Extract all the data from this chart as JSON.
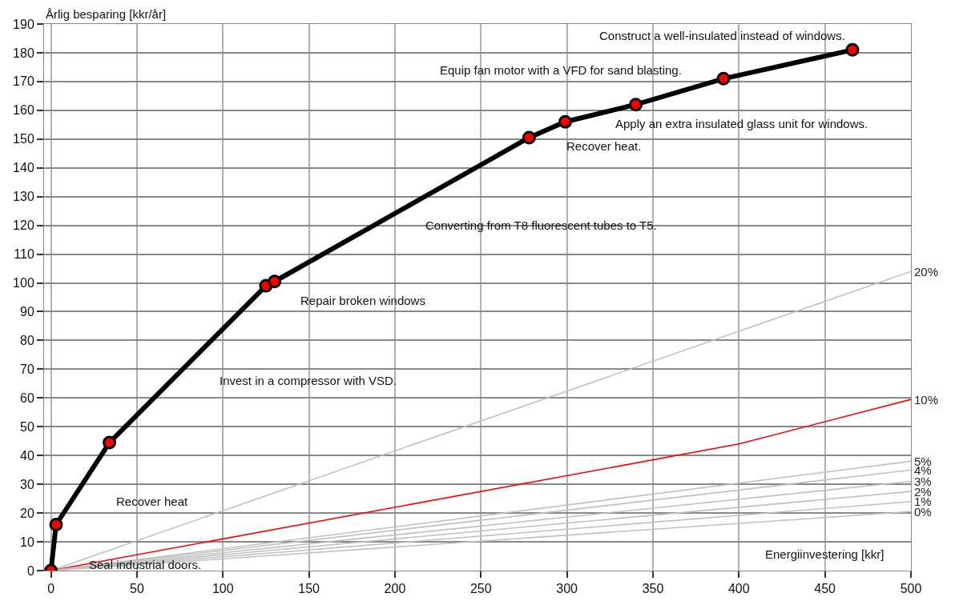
{
  "chart_data": {
    "type": "line",
    "ylabel": "Årlig besparing [kkr/år]",
    "xlabel": "Energiinvestering [kkr]",
    "xlim": [
      -4,
      500
    ],
    "ylim": [
      0,
      190
    ],
    "xticks": [
      0,
      50,
      100,
      150,
      200,
      250,
      300,
      350,
      400,
      450,
      500
    ],
    "yticks": [
      0,
      10,
      20,
      30,
      40,
      50,
      60,
      70,
      80,
      90,
      100,
      110,
      120,
      130,
      140,
      150,
      160,
      170,
      180,
      190
    ],
    "grid": true,
    "legend": false,
    "series": [
      {
        "name": "20%",
        "color": "#c0c0c0",
        "x": [
          0,
          500
        ],
        "values": [
          0,
          104
        ],
        "marker": "none"
      },
      {
        "name": "10%",
        "color": "#ff0000",
        "x": [
          0,
          400,
          500
        ],
        "values": [
          0,
          44,
          59.5
        ],
        "marker": "none"
      },
      {
        "name": "5%",
        "color": "#c0c0c0",
        "x": [
          0,
          500
        ],
        "values": [
          0,
          38
        ],
        "marker": "none"
      },
      {
        "name": "4%",
        "color": "#c0c0c0",
        "x": [
          0,
          500
        ],
        "values": [
          0,
          35
        ],
        "marker": "none"
      },
      {
        "name": "3%",
        "color": "#c0c0c0",
        "x": [
          0,
          500
        ],
        "values": [
          0,
          31
        ],
        "marker": "none"
      },
      {
        "name": "2%",
        "color": "#c0c0c0",
        "x": [
          0,
          500
        ],
        "values": [
          0,
          27.5
        ],
        "marker": "none"
      },
      {
        "name": "1%",
        "color": "#c0c0c0",
        "x": [
          0,
          500
        ],
        "values": [
          0,
          24
        ],
        "marker": "none"
      },
      {
        "name": "0%",
        "color": "#c0c0c0",
        "x": [
          0,
          500
        ],
        "values": [
          0,
          20.5
        ],
        "marker": "none"
      },
      {
        "color": "#000000",
        "colors": [
          "#ff0000",
          "#ff0000",
          "#ff0000",
          "#ff0000",
          "#ff0000",
          "#ff0000",
          "#ff0000",
          "#ff0000",
          "#ff0000",
          "#ff0000"
        ],
        "marker": "circle",
        "x": [
          0,
          3,
          34,
          125,
          130,
          278,
          299,
          340,
          391,
          466
        ],
        "values": [
          0,
          16,
          44.5,
          99,
          100.5,
          150.5,
          156,
          162,
          171,
          181
        ]
      }
    ],
    "annotations": [
      "Seal industrial doors.",
      "Recover heat",
      "Invest in a compressor with VSD.",
      "Repair broken windows",
      "Converting from T8 fluorescent tubes to T5.",
      "Recover heat.",
      "Apply an extra insulated glass unit for windows.",
      "Equip fan motor with a VFD for sand blasting.",
      "Construct a well-insulated instead of windows."
    ]
  }
}
